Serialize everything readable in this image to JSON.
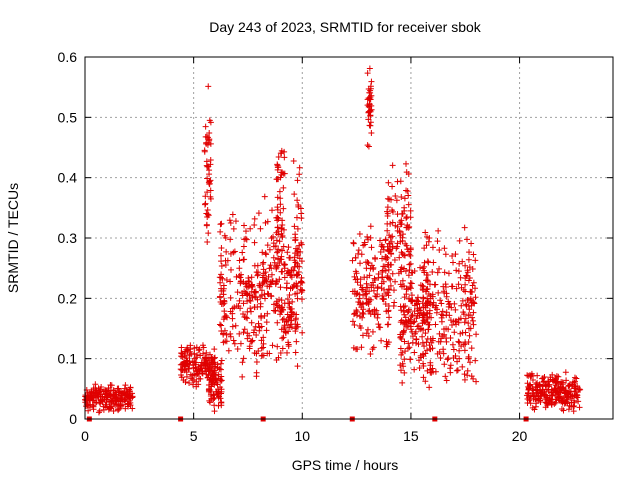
{
  "chart_data": {
    "type": "scatter",
    "title": "Day 243 of 2023, SRMTID for receiver sbok",
    "xlabel": "GPS time / hours",
    "ylabel": "SRMTID / TECUs",
    "xlim": [
      0,
      24.3
    ],
    "ylim": [
      0,
      0.6
    ],
    "xticks": [
      0,
      5,
      10,
      15,
      20
    ],
    "yticks": [
      0,
      0.1,
      0.2,
      0.3,
      0.4,
      0.5,
      0.6
    ],
    "xtick_labels": [
      "0",
      "5",
      "10",
      "15",
      "20"
    ],
    "ytick_labels": [
      "0",
      "0.1",
      "0.2",
      "0.3",
      "0.4",
      "0.5",
      "0.6"
    ],
    "grid": true,
    "marker": "+",
    "color": "#e00000",
    "gap_markers_x": [
      0.2,
      4.4,
      8.2,
      12.3,
      16.1,
      20.3
    ],
    "clusters": [
      {
        "x_range": [
          0.0,
          2.2
        ],
        "y_range": [
          0.01,
          0.06
        ]
      },
      {
        "x_range": [
          4.4,
          6.0
        ],
        "y_range": [
          0.05,
          0.13
        ]
      },
      {
        "x_range": [
          5.5,
          5.8
        ],
        "y_range": [
          0.25,
          0.56
        ]
      },
      {
        "x_range": [
          5.7,
          6.3
        ],
        "y_range": [
          0.01,
          0.1
        ]
      },
      {
        "x_range": [
          6.2,
          8.0
        ],
        "y_range": [
          0.05,
          0.35
        ]
      },
      {
        "x_range": [
          8.0,
          9.0
        ],
        "y_range": [
          0.07,
          0.38
        ]
      },
      {
        "x_range": [
          8.8,
          9.2
        ],
        "y_range": [
          0.2,
          0.48
        ]
      },
      {
        "x_range": [
          9.0,
          9.8
        ],
        "y_range": [
          0.08,
          0.3
        ]
      },
      {
        "x_range": [
          9.6,
          10.0
        ],
        "y_range": [
          0.1,
          0.46
        ]
      },
      {
        "x_range": [
          12.3,
          14.0
        ],
        "y_range": [
          0.1,
          0.33
        ]
      },
      {
        "x_range": [
          13.0,
          13.2
        ],
        "y_range": [
          0.45,
          0.59
        ]
      },
      {
        "x_range": [
          13.9,
          15.0
        ],
        "y_range": [
          0.15,
          0.43
        ]
      },
      {
        "x_range": [
          14.5,
          16.0
        ],
        "y_range": [
          0.05,
          0.26
        ]
      },
      {
        "x_range": [
          15.5,
          18.0
        ],
        "y_range": [
          0.04,
          0.33
        ]
      },
      {
        "x_range": [
          20.3,
          22.8
        ],
        "y_range": [
          0.01,
          0.08
        ]
      }
    ]
  }
}
